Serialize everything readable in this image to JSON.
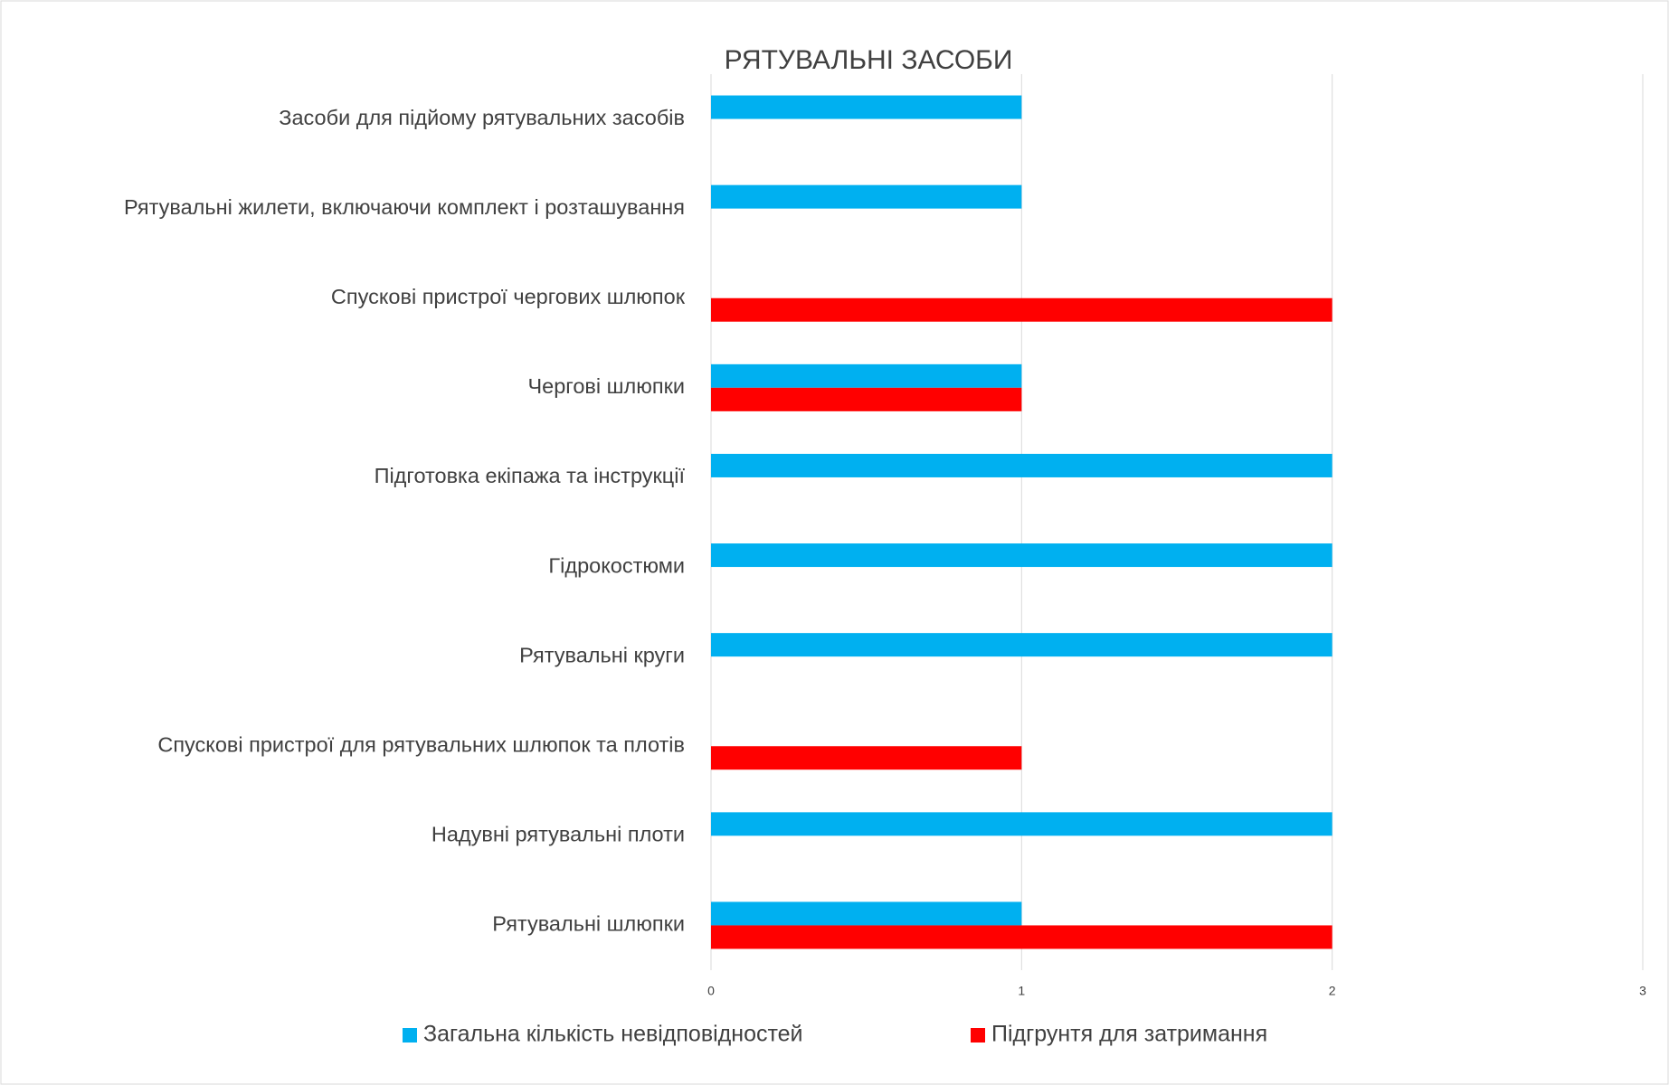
{
  "chart_data": {
    "type": "bar",
    "orientation": "horizontal",
    "title": "РЯТУВАЛЬНІ ЗАСОБИ",
    "categories": [
      "Засоби для підйому рятувальних засобів",
      "Рятувальні жилети, включаючи комплект і розташування",
      "Спускові пристрої чергових шлюпок",
      "Чергові шлюпки",
      "Підготовка екіпажа та інструкції",
      "Гідрокостюми",
      "Рятувальні круги",
      "Спускові пристрої для рятувальних шлюпок та плотів",
      "Надувні рятувальні плоти",
      "Рятувальні шлюпки"
    ],
    "series": [
      {
        "name": "Загальна кількість невідповідностей",
        "color": "#00b0f0",
        "values": [
          1,
          1,
          null,
          1,
          2,
          2,
          2,
          null,
          2,
          1
        ]
      },
      {
        "name": "Підгрунтя для затримання",
        "color": "#ff0000",
        "values": [
          null,
          null,
          2,
          1,
          null,
          null,
          null,
          1,
          null,
          2
        ]
      }
    ],
    "xlim": [
      0,
      3
    ],
    "xticks": [
      0,
      1,
      2,
      3
    ],
    "grid": true,
    "legend": "bottom"
  }
}
